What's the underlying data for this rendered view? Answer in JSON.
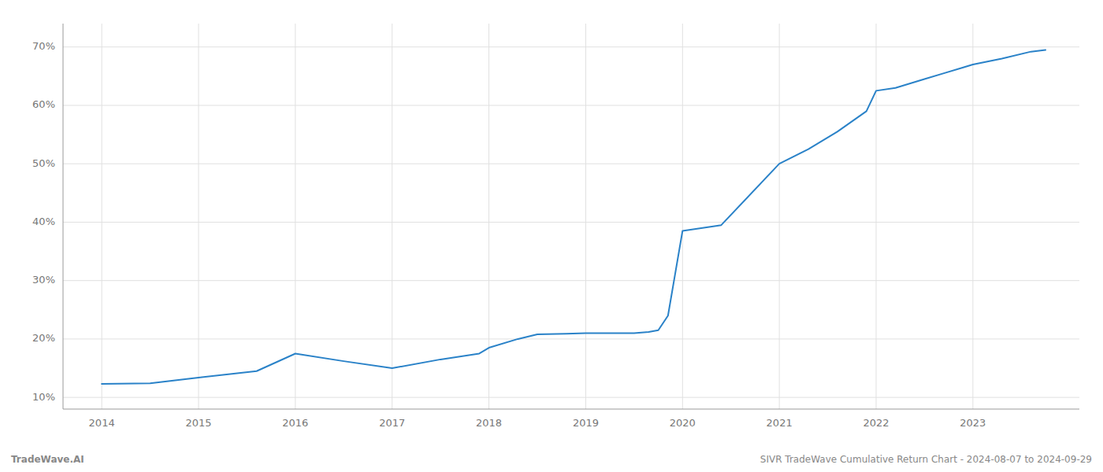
{
  "chart_data": {
    "type": "line",
    "x": [
      2014.0,
      2014.5,
      2015.0,
      2015.6,
      2016.0,
      2016.5,
      2017.0,
      2017.5,
      2017.9,
      2018.0,
      2018.3,
      2018.5,
      2018.8,
      2019.0,
      2019.3,
      2019.5,
      2019.65,
      2019.75,
      2019.85,
      2020.0,
      2020.4,
      2021.0,
      2021.3,
      2021.6,
      2021.9,
      2022.0,
      2022.2,
      2022.5,
      2022.7,
      2022.9,
      2023.0,
      2023.3,
      2023.6,
      2023.75
    ],
    "values": [
      12.3,
      12.4,
      13.4,
      14.5,
      17.5,
      16.2,
      15.0,
      16.5,
      17.5,
      18.5,
      20.0,
      20.8,
      20.9,
      21.0,
      21.0,
      21.0,
      21.2,
      21.5,
      24.0,
      38.5,
      39.5,
      50.0,
      52.5,
      55.5,
      59.0,
      62.5,
      63.0,
      64.5,
      65.5,
      66.5,
      67.0,
      68.0,
      69.2,
      69.5
    ],
    "color": "#2a82c8",
    "xlim": [
      2013.6,
      2024.1
    ],
    "ylim": [
      8,
      74
    ],
    "xticks": [
      2014,
      2015,
      2016,
      2017,
      2018,
      2019,
      2020,
      2021,
      2022,
      2023
    ],
    "yticks": [
      {
        "value": 10,
        "label": "10%"
      },
      {
        "value": 20,
        "label": "20%"
      },
      {
        "value": 30,
        "label": "30%"
      },
      {
        "value": 40,
        "label": "40%"
      },
      {
        "value": 50,
        "label": "50%"
      },
      {
        "value": 60,
        "label": "60%"
      },
      {
        "value": 70,
        "label": "70%"
      }
    ],
    "grid": true,
    "annotations": [
      "TradeWave.AI",
      "SIVR TradeWave Cumulative Return Chart - 2024-08-07 to 2024-09-29"
    ]
  }
}
